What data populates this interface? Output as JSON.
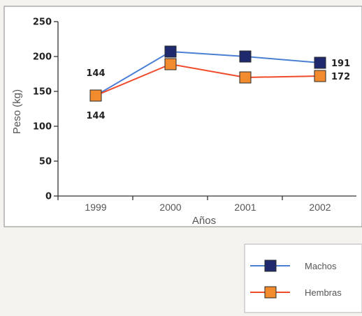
{
  "chart_data": {
    "type": "line",
    "xlabel": "Años",
    "ylabel": "Peso (kg)",
    "categories": [
      "1999",
      "2000",
      "2001",
      "2002"
    ],
    "ylim": [
      0,
      250
    ],
    "yticks": [
      0,
      50,
      100,
      150,
      200,
      250
    ],
    "grid": false,
    "legend_position": "bottom-right",
    "series": [
      {
        "name": "Machos",
        "values": [
          144,
          207,
          200,
          191
        ],
        "line_color": "#4a7fd4",
        "marker_color": "#1f2a6e"
      },
      {
        "name": "Hembras",
        "values": [
          144,
          189,
          170,
          172
        ],
        "line_color": "#f04a2a",
        "marker_color": "#f28a2e"
      }
    ],
    "annotations": [
      {
        "series": 0,
        "index": 0,
        "text": "144",
        "side": "above"
      },
      {
        "series": 1,
        "index": 0,
        "text": "144",
        "side": "below"
      },
      {
        "series": 0,
        "index": 3,
        "text": "191",
        "side": "right"
      },
      {
        "series": 1,
        "index": 3,
        "text": "172",
        "side": "right"
      }
    ]
  }
}
